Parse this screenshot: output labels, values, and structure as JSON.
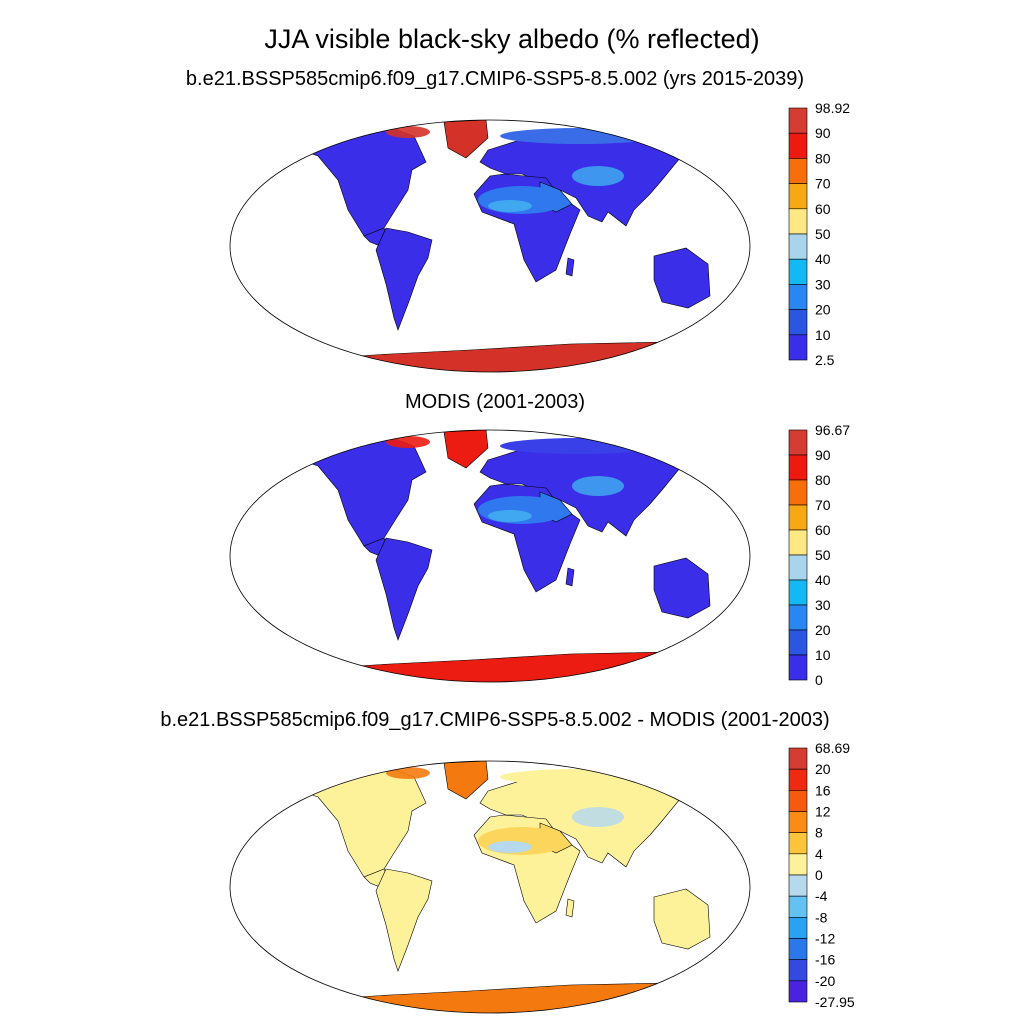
{
  "title": "JJA visible black-sky albedo (% reflected)",
  "panels": [
    {
      "id": "model",
      "title": "b.e21.BSSP585cmip6.f09_g17.CMIP6-SSP5-8.5.002 (yrs 2015-2039)",
      "land_color": "#3a2ee8",
      "arid_color": "#2f78ee",
      "arid_light_color": "#40a8f0",
      "polar_color": "#d43228",
      "arctic_color": "#3a6ce8",
      "colorbar": {
        "labels": [
          "98.92",
          "90",
          "80",
          "70",
          "60",
          "50",
          "40",
          "30",
          "20",
          "10",
          "2.5"
        ],
        "colors": [
          "#d53d32",
          "#ee1a10",
          "#f86e0a",
          "#f8a814",
          "#fde883",
          "#a8d4ec",
          "#14b8f2",
          "#2a86f2",
          "#2a56e2",
          "#3a2ee8"
        ]
      }
    },
    {
      "id": "obs",
      "title": "MODIS (2001-2003)",
      "land_color": "#3a2ee8",
      "arid_color": "#2f78ee",
      "arid_light_color": "#40a8f0",
      "polar_color": "#ec1c12",
      "arctic_color": "#3a40e8",
      "colorbar": {
        "labels": [
          "96.67",
          "90",
          "80",
          "70",
          "60",
          "50",
          "40",
          "30",
          "20",
          "10",
          "0"
        ],
        "colors": [
          "#d53d32",
          "#ee1a10",
          "#f86e0a",
          "#f8a814",
          "#fde883",
          "#a8d4ec",
          "#14b8f2",
          "#2a86f2",
          "#2a56e2",
          "#3a2ee8"
        ]
      }
    },
    {
      "id": "diff",
      "title": "b.e21.BSSP585cmip6.f09_g17.CMIP6-SSP5-8.5.002 - MODIS (2001-2003)",
      "land_color": "#fdf29a",
      "arid_color": "#fcd65c",
      "arid_light_color": "#b6d9ee",
      "polar_color": "#f47a10",
      "arctic_color": "#fdf29a",
      "colorbar": {
        "labels": [
          "68.69",
          "20",
          "16",
          "12",
          "8",
          "4",
          "0",
          "-4",
          "-8",
          "-12",
          "-16",
          "-20",
          "-27.95"
        ],
        "colors": [
          "#d53d32",
          "#ee2a10",
          "#f65a0c",
          "#f88c14",
          "#fcc43a",
          "#fdf29a",
          "#b6d9ee",
          "#64c2f2",
          "#2aa2f2",
          "#2a78ea",
          "#3448e2",
          "#4a22e0"
        ]
      }
    }
  ]
}
